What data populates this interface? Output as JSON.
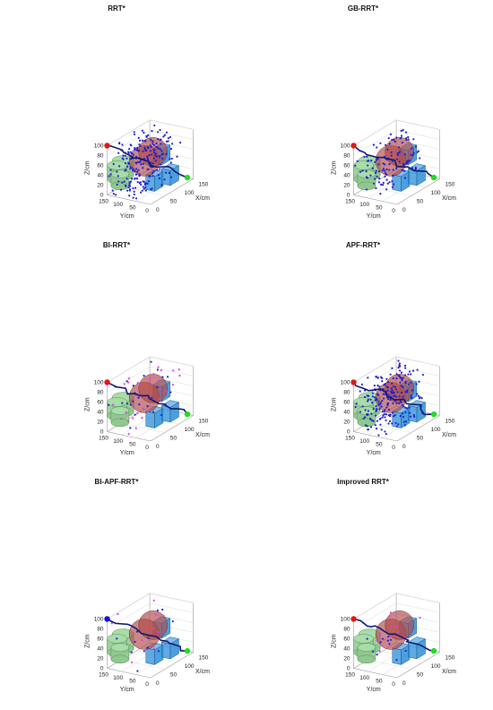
{
  "chart_data": [
    {
      "type": "scatter",
      "title": "RRT*",
      "xlabel": "X/cm",
      "ylabel": "Y/cm",
      "zlabel": "Z/cm",
      "xlim": [
        0,
        150
      ],
      "ylim": [
        0,
        150
      ],
      "zlim": [
        0,
        100
      ],
      "x_ticks": [
        "0",
        "50",
        "100",
        "150"
      ],
      "y_ticks": [
        "0",
        "50",
        "100",
        "150"
      ],
      "z_ticks": [
        "0",
        "20",
        "40",
        "60",
        "80",
        "100"
      ],
      "tree_color": "#1f1fd0",
      "tree_size": "large",
      "bidirectional": false,
      "path_color": "#0b1a6e"
    },
    {
      "type": "scatter",
      "title": "GB-RRT*",
      "xlabel": "X/cm",
      "ylabel": "Y/cm",
      "zlabel": "Z/cm",
      "xlim": [
        0,
        150
      ],
      "ylim": [
        0,
        150
      ],
      "zlim": [
        0,
        100
      ],
      "x_ticks": [
        "0",
        "50",
        "100",
        "150"
      ],
      "y_ticks": [
        "0",
        "50",
        "100",
        "150"
      ],
      "z_ticks": [
        "0",
        "20",
        "40",
        "60",
        "80",
        "100"
      ],
      "tree_color": "#1f1fd0",
      "tree_size": "medium",
      "bidirectional": false,
      "path_color": "#0b1a6e"
    },
    {
      "type": "scatter",
      "title": "BI-RRT*",
      "xlabel": "X/cm",
      "ylabel": "Y/cm",
      "zlabel": "Z/cm",
      "xlim": [
        0,
        150
      ],
      "ylim": [
        0,
        150
      ],
      "zlim": [
        0,
        100
      ],
      "x_ticks": [
        "0",
        "50",
        "100",
        "150"
      ],
      "y_ticks": [
        "0",
        "50",
        "100",
        "150"
      ],
      "z_ticks": [
        "0",
        "20",
        "40",
        "60",
        "80",
        "100"
      ],
      "tree_color": "#1f1fd0",
      "tree_color_2": "#e040e0",
      "tree_size": "small",
      "bidirectional": true,
      "path_color": "#0b1a6e"
    },
    {
      "type": "scatter",
      "title": "APF-RRT*",
      "xlabel": "X/cm",
      "ylabel": "Y/cm",
      "zlabel": "Z/cm",
      "xlim": [
        0,
        150
      ],
      "ylim": [
        0,
        150
      ],
      "zlim": [
        0,
        100
      ],
      "x_ticks": [
        "0",
        "50",
        "100",
        "150"
      ],
      "y_ticks": [
        "0",
        "50",
        "100",
        "150"
      ],
      "z_ticks": [
        "0",
        "20",
        "40",
        "60",
        "80",
        "100"
      ],
      "tree_color": "#1f1fd0",
      "tree_size": "large",
      "bidirectional": false,
      "path_color": "#0b1a6e"
    },
    {
      "type": "scatter",
      "title": "BI-APF-RRT*",
      "xlabel": "X/cm",
      "ylabel": "Y/cm",
      "zlabel": "Z/cm",
      "xlim": [
        0,
        150
      ],
      "ylim": [
        0,
        150
      ],
      "zlim": [
        0,
        100
      ],
      "x_ticks": [
        "0",
        "50",
        "100",
        "150"
      ],
      "y_ticks": [
        "0",
        "50",
        "100",
        "150"
      ],
      "z_ticks": [
        "0",
        "20",
        "40",
        "60",
        "80",
        "100"
      ],
      "tree_color": "#1f1fd0",
      "tree_color_2": "#e040e0",
      "tree_size": "tiny",
      "bidirectional": true,
      "path_color": "#0b1a6e",
      "start_color": "#1010e0"
    },
    {
      "type": "scatter",
      "title": "Improved RRT*",
      "xlabel": "X/cm",
      "ylabel": "Y/cm",
      "zlabel": "Z/cm",
      "xlim": [
        0,
        150
      ],
      "ylim": [
        0,
        150
      ],
      "zlim": [
        0,
        100
      ],
      "x_ticks": [
        "0",
        "50",
        "100",
        "150"
      ],
      "y_ticks": [
        "0",
        "50",
        "100",
        "150"
      ],
      "z_ticks": [
        "0",
        "20",
        "40",
        "60",
        "80",
        "100"
      ],
      "tree_color": "#1f1fd0",
      "tree_color_2": "#e040e0",
      "tree_size": "tiny",
      "bidirectional": true,
      "path_color": "#0b1a6e"
    }
  ],
  "colors": {
    "cylinder": "#8fc98f",
    "sphere": "#b04848",
    "box": "#2e8fd8",
    "start": "#e01818",
    "goal": "#22dd22"
  }
}
